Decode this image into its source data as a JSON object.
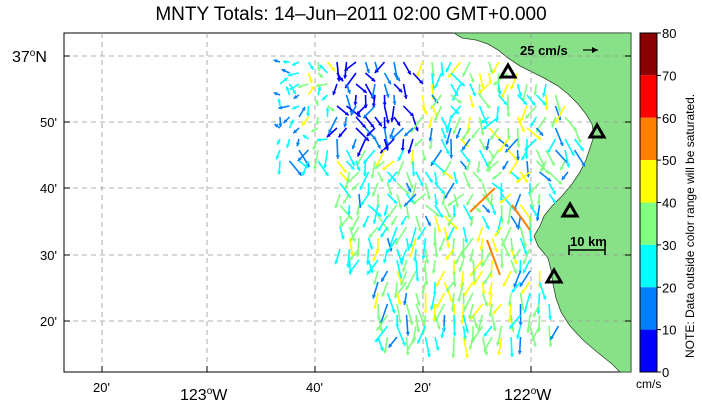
{
  "title": "MNTY Totals: 14–Jun–2011 02:00 GMT+0.000",
  "scale_label": "25 cm/s",
  "distance_label": "10 km",
  "note": "NOTE: Data outside color range will be saturated.",
  "colorbar": {
    "unit": "cm/s",
    "ticks": [
      "80",
      "70",
      "60",
      "50",
      "40",
      "30",
      "20",
      "10",
      "0"
    ],
    "colors": [
      "#8b0000",
      "#ff0000",
      "#ff8000",
      "#ffff00",
      "#80ff80",
      "#00ffff",
      "#0080ff",
      "#0000ff"
    ]
  },
  "lat_labels": [
    "37°N",
    "50'",
    "40'",
    "30'",
    "20'"
  ],
  "lon_labels": [
    "20'",
    "123°W",
    "40'",
    "20'",
    "122°W"
  ],
  "map": {
    "land_color": "#88e088",
    "grid": "dashed"
  },
  "sites": [
    "triangle",
    "triangle",
    "triangle",
    "triangle"
  ]
}
